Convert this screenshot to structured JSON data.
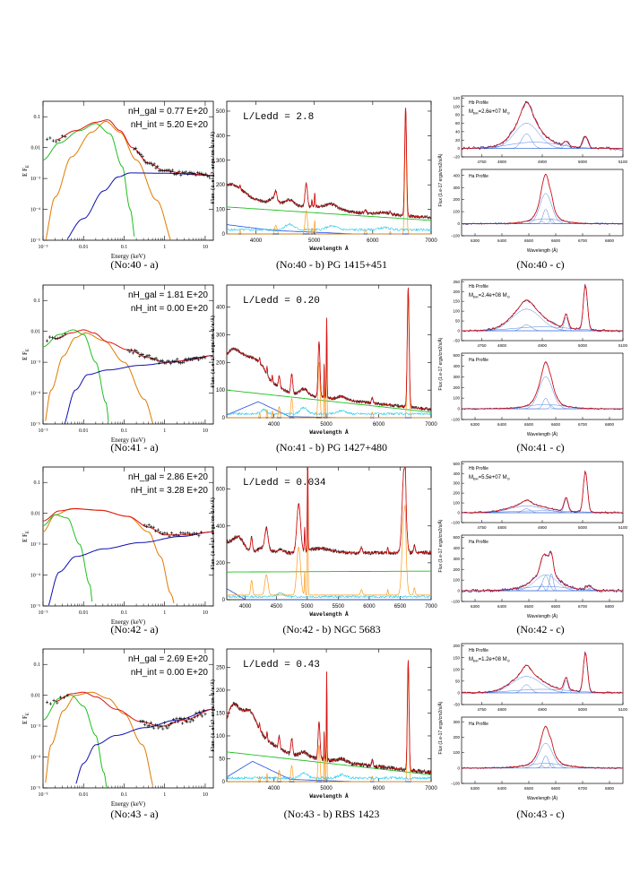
{
  "chart_data": [
    {
      "id": "n40a",
      "type": "line",
      "caption": "(No:40 - a)",
      "ylabel": "E F",
      "ysub": "E",
      "xlabel": "Energy (keV)",
      "xticks": [
        "10⁻³",
        "0.01",
        "0.1",
        "1",
        "10"
      ],
      "yticks": [
        "0.1",
        "0.01",
        "10⁻³",
        "10⁻⁴",
        "10⁻⁵"
      ],
      "annotations": [
        "nH_gal = 0.77 E+20",
        "nH_int = 5.20 E+20"
      ],
      "colors": {
        "soft": "#e07b00",
        "green": "#1fbf1f",
        "power": "#1010b0",
        "total": "#e01010",
        "data": "#000000"
      },
      "series": [
        {
          "name": "",
          "color": "#e07b00",
          "points": [
            [
              -3.0,
              -5.0
            ],
            [
              -2.8,
              -3.6
            ],
            [
              -2.5,
              -2.5
            ],
            [
              -2.0,
              -1.6
            ],
            [
              -1.6,
              -1.2
            ],
            [
              -1.4,
              -1.2
            ],
            [
              -1.0,
              -1.6
            ],
            [
              -0.5,
              -2.7
            ],
            [
              0.0,
              -4.2
            ],
            [
              0.3,
              -5.0
            ]
          ]
        },
        {
          "name": "",
          "color": "#1fbf1f",
          "points": [
            [
              -3.0,
              -2.5
            ],
            [
              -2.6,
              -1.9
            ],
            [
              -2.0,
              -1.4
            ],
            [
              -1.6,
              -1.2
            ],
            [
              -1.2,
              -1.6
            ],
            [
              -0.9,
              -2.8
            ],
            [
              -0.7,
              -5.0
            ]
          ]
        },
        {
          "name": "",
          "color": "#1010b0",
          "points": [
            [
              -3.0,
              -5.0
            ],
            [
              -2.0,
              -4.2
            ],
            [
              -1.5,
              -3.4
            ],
            [
              -1.1,
              -2.95
            ],
            [
              -0.8,
              -2.85
            ],
            [
              0.0,
              -2.85
            ],
            [
              1.2,
              -2.9
            ]
          ]
        },
        {
          "name": "",
          "color": "#e01010",
          "points": [
            [
              -2.6,
              -1.7
            ],
            [
              -2.0,
              -1.35
            ],
            [
              -1.5,
              -1.1
            ],
            [
              -1.2,
              -1.2
            ],
            [
              -0.9,
              -1.8
            ],
            [
              -0.5,
              -2.4
            ],
            [
              0.0,
              -2.75
            ],
            [
              0.5,
              -2.85
            ],
            [
              1.2,
              -2.9
            ]
          ]
        },
        {
          "name": "",
          "color": "#000000",
          "points": [
            [
              -2.9,
              -2.05
            ],
            [
              -2.7,
              -1.9
            ],
            [
              -2.5,
              -1.75
            ],
            [
              -0.7,
              -2.05
            ],
            [
              -0.5,
              -2.3
            ],
            [
              -0.3,
              -2.55
            ],
            [
              0.0,
              -2.75
            ],
            [
              0.3,
              -2.85
            ],
            [
              0.6,
              -2.9
            ],
            [
              1.0,
              -2.88
            ]
          ]
        }
      ]
    },
    {
      "id": "n40b",
      "type": "line",
      "caption": "(No:40 - b) PG 1415+451",
      "ylabel": "Flux (1.e-17 ergs/cm-2/s/Å)",
      "xlabel": "Wavelength Å",
      "xticks": [
        "4000",
        "5000",
        "6000",
        "7000"
      ],
      "yticks": [
        "0",
        "100",
        "200",
        "300",
        "400",
        "500"
      ],
      "annotations": [
        "L/Ledd = 2.8"
      ]
    },
    {
      "id": "n40c",
      "type": "line",
      "caption": "(No:40 - c)",
      "top": {
        "label": "Hb Profile",
        "mass": "M",
        "mass_sub": "BH",
        "mass_value": "=2.6e+07 M",
        "sun": "⊙",
        "xticks": [
          "4750",
          "4800",
          "4900",
          "5000",
          "5100"
        ],
        "yticks": [
          "120",
          "100",
          "80",
          "60",
          "40",
          "20",
          "0",
          "−20"
        ]
      },
      "bottom": {
        "label": "Ha Profile",
        "xticks": [
          "6300",
          "6400",
          "6500",
          "6600",
          "6700",
          "6800"
        ],
        "yticks": [
          "400",
          "300",
          "200",
          "100",
          "0",
          "−100"
        ]
      },
      "ylabel": "Flux (1.e-17 ergs/cm2/s/Å)",
      "xlabel": "Wavelength (Å)"
    },
    {
      "id": "n41a",
      "type": "line",
      "caption": "(No:41 - a)",
      "ylabel": "E F",
      "ysub": "E",
      "xlabel": "Energy (keV)",
      "xticks": [
        "10⁻³",
        "0.01",
        "0.1",
        "1",
        "10"
      ],
      "yticks": [
        "0.1",
        "0.01",
        "10⁻³",
        "10⁻⁴",
        "10⁻⁵"
      ],
      "annotations": [
        "nH_gal = 1.81 E+20",
        "nH_int = 0.00 E+20"
      ]
    },
    {
      "id": "n41b",
      "type": "line",
      "caption": "(No:41 - b) PG 1427+480",
      "ylabel": "Flux (1.e-17 ergs/cm-2/s/Å)",
      "xlabel": "Wavelength Å",
      "xticks": [
        "4000",
        "5000",
        "6000",
        "7000"
      ],
      "yticks": [
        "0",
        "100",
        "200",
        "300",
        "400"
      ],
      "annotations": [
        "L/Ledd = 0.20"
      ]
    },
    {
      "id": "n41c",
      "type": "line",
      "caption": "(No:41 - c)",
      "top": {
        "label": "Hb Profile",
        "mass": "M",
        "mass_sub": "BH",
        "mass_value": "=2.4e+08 M",
        "sun": "⊙",
        "xticks": [
          "4750",
          "4800",
          "4900",
          "5000",
          "5100"
        ],
        "yticks": [
          "250",
          "200",
          "150",
          "100",
          "50",
          "0",
          "−50"
        ]
      },
      "bottom": {
        "label": "Ha Profile",
        "xticks": [
          "6300",
          "6400",
          "6500",
          "6600",
          "6700",
          "6800"
        ],
        "yticks": [
          "500",
          "400",
          "300",
          "200",
          "100",
          "0",
          "−100"
        ]
      },
      "ylabel": "Flux (1.e-17 ergs/cm2/s/Å)",
      "xlabel": "Wavelength (Å)"
    },
    {
      "id": "n42a",
      "type": "line",
      "caption": "(No:42 - a)",
      "ylabel": "E F",
      "ysub": "E",
      "xlabel": "Energy (keV)",
      "xticks": [
        "10⁻³",
        "0.01",
        "0.1",
        "1",
        "10"
      ],
      "yticks": [
        "0.1",
        "0.01",
        "10⁻³",
        "10⁻⁴",
        "10⁻⁵"
      ],
      "annotations": [
        "nH_gal = 2.86 E+20",
        "nH_int = 3.28 E+20"
      ]
    },
    {
      "id": "n42b",
      "type": "line",
      "caption": "(No:42 - b) NGC 5683",
      "ylabel": "Flux (1.e-17 ergs/cm-2/s/Å)",
      "xlabel": "Wavelength Å",
      "xticks": [
        "4000",
        "4500",
        "5000",
        "5500",
        "6000",
        "6500",
        "7000"
      ],
      "yticks": [
        "0",
        "200",
        "400",
        "600"
      ],
      "annotations": [
        "L/Ledd = 0.034"
      ]
    },
    {
      "id": "n42c",
      "type": "line",
      "caption": "(No:42 - c)",
      "top": {
        "label": "Hb Profile",
        "mass": "M",
        "mass_sub": "BH",
        "mass_value": "=5.5e+07 M",
        "sun": "⊙",
        "xticks": [
          "4750",
          "4800",
          "4900",
          "5000",
          "5100"
        ],
        "yticks": [
          "500",
          "400",
          "300",
          "200",
          "100",
          "0",
          "−100"
        ]
      },
      "bottom": {
        "label": "Ha Profile",
        "xticks": [
          "6300",
          "6400",
          "6500",
          "6600",
          "6700",
          "6800"
        ],
        "yticks": [
          "500",
          "400",
          "300",
          "200",
          "100",
          "0",
          "−100"
        ]
      },
      "ylabel": "Flux (1.e-17 ergs/cm2/s/Å)",
      "xlabel": "Wavelength (Å)"
    },
    {
      "id": "n43a",
      "type": "line",
      "caption": "(No:43 - a)",
      "ylabel": "E F",
      "ysub": "E",
      "xlabel": "Energy (keV)",
      "xticks": [
        "10⁻³",
        "0.01",
        "0.1",
        "1",
        "10"
      ],
      "yticks": [
        "0.1",
        "0.01",
        "10⁻³",
        "10⁻⁴",
        "10⁻⁵"
      ],
      "annotations": [
        "nH_gal = 2.69 E+20",
        "nH_int = 0.00 E+20"
      ]
    },
    {
      "id": "n43b",
      "type": "line",
      "caption": "(No:43 - b) RBS 1423",
      "ylabel": "Flux (1.e-17 ergs/cm-2/s/Å)",
      "xlabel": "Wavelength Å",
      "xticks": [
        "4000",
        "5000",
        "6000",
        "7000"
      ],
      "yticks": [
        "0",
        "50",
        "100",
        "150",
        "200",
        "250"
      ],
      "annotations": [
        "L/Ledd = 0.43"
      ]
    },
    {
      "id": "n43c",
      "type": "line",
      "caption": "(No:43 - c)",
      "top": {
        "label": "Hb Profile",
        "mass": "M",
        "mass_sub": "BH",
        "mass_value": "=1.2e+08 M",
        "sun": "⊙",
        "xticks": [
          "4750",
          "4800",
          "4900",
          "5000",
          "5100"
        ],
        "yticks": [
          "200",
          "150",
          "100",
          "50",
          "0",
          "−50"
        ]
      },
      "bottom": {
        "label": "Ha Profile",
        "xticks": [
          "6300",
          "6400",
          "6500",
          "6600",
          "6700",
          "6800"
        ],
        "yticks": [
          "300",
          "200",
          "100",
          "0",
          "−100"
        ]
      },
      "ylabel": "Flux (1.e-17 ergs/cm2/s/Å)",
      "xlabel": "Wavelength (Å)"
    }
  ]
}
